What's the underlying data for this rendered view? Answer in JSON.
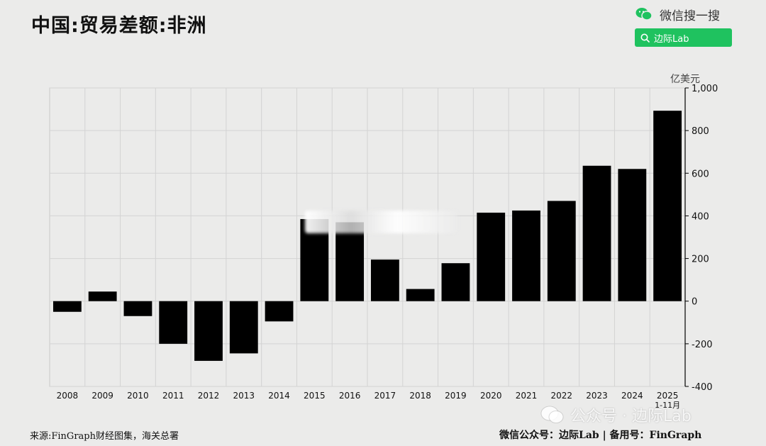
{
  "title": "中国:贸易差额:非洲",
  "brand": {
    "text": "微信搜一搜",
    "search_label": "边际Lab"
  },
  "unit_label": "亿美元",
  "footer": {
    "source": "来源:FinGraph财经图集，海关总署",
    "credit": "微信公众号：边际Lab  |  备用号：FinGraph"
  },
  "watermark": "公众号 · 边际Lab",
  "colors": {
    "bar": "#000000",
    "search": "#1fc25f",
    "background": "#ebebea"
  },
  "chart_data": {
    "type": "bar",
    "title": "中国:贸易差额:非洲",
    "ylabel": "亿美元",
    "ylim": [
      -400,
      1000
    ],
    "yticks": [
      -400,
      -200,
      0,
      200,
      400,
      600,
      800,
      1000
    ],
    "ytick_labels": [
      "-400",
      "-200",
      "0",
      "200",
      "400",
      "600",
      "800",
      "1,000"
    ],
    "categories": [
      "2008",
      "2009",
      "2010",
      "2011",
      "2012",
      "2013",
      "2014",
      "2015",
      "2016",
      "2017",
      "2018",
      "2019",
      "2020",
      "2021",
      "2022",
      "2023",
      "2024",
      "2025"
    ],
    "category_sublabels": {
      "2025": "1-11月"
    },
    "values": [
      -50,
      45,
      -70,
      -200,
      -280,
      -245,
      -95,
      385,
      370,
      195,
      57,
      178,
      415,
      425,
      470,
      635,
      620,
      893
    ],
    "grid": true,
    "y_axis_position": "right"
  }
}
